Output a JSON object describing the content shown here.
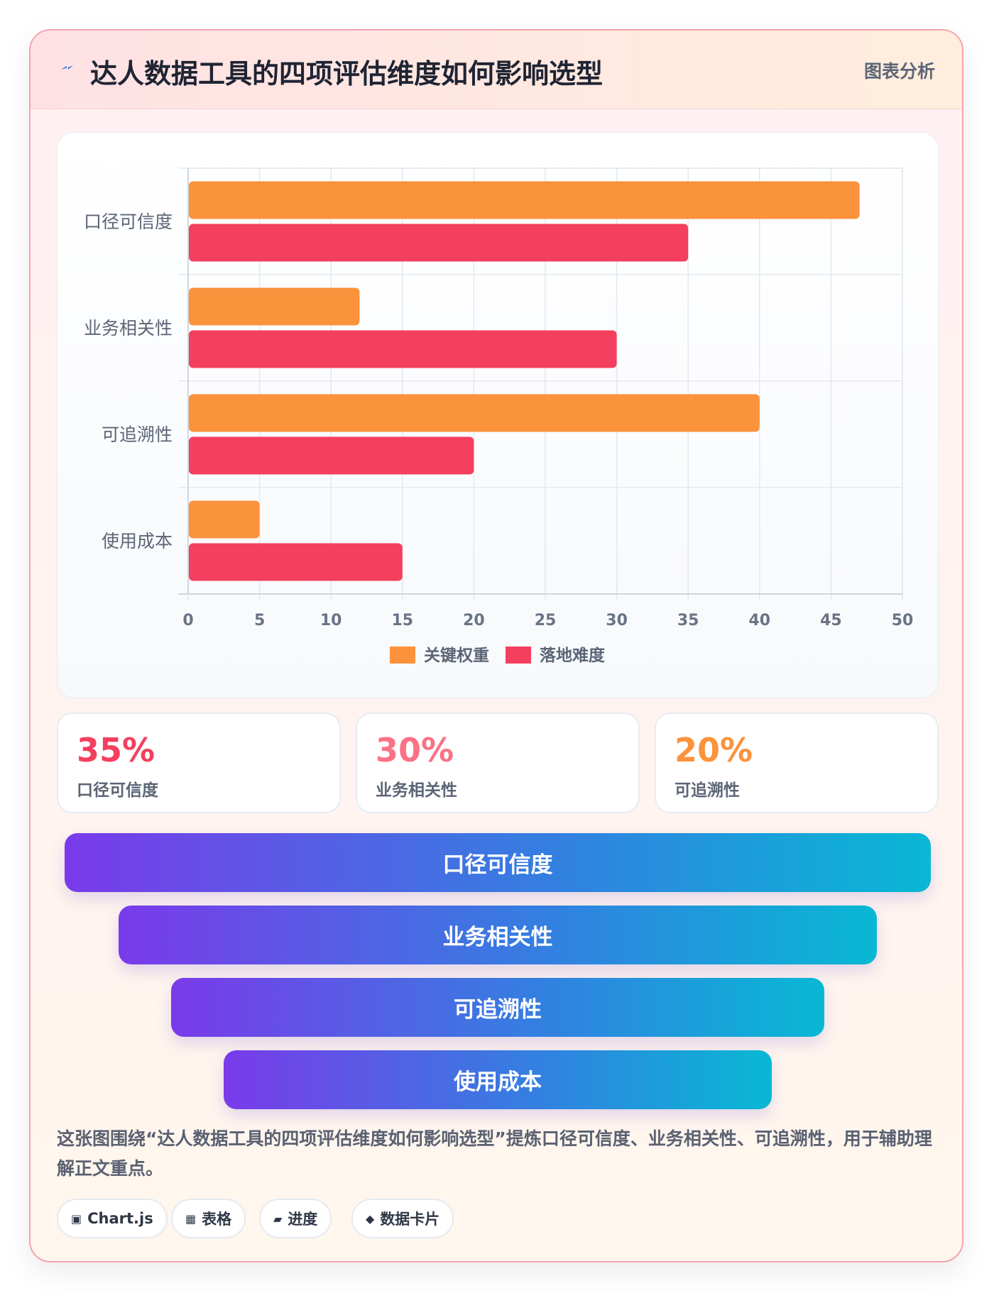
{
  "header": {
    "title": "达人数据工具的四项评估维度如何影响选型",
    "tag": "图表分析"
  },
  "chart_data": {
    "type": "bar",
    "orientation": "horizontal",
    "categories": [
      "口径可信度",
      "业务相关性",
      "可追溯性",
      "使用成本"
    ],
    "series": [
      {
        "name": "关键权重",
        "values": [
          47,
          12,
          40,
          5
        ],
        "color": "#fb923c"
      },
      {
        "name": "落地难度",
        "values": [
          35,
          30,
          20,
          15
        ],
        "color": "#f43f5e"
      }
    ],
    "xlim": [
      0,
      50
    ],
    "x_ticks": [
      "0",
      "5",
      "10",
      "15",
      "20",
      "25",
      "30",
      "35",
      "40",
      "45",
      "50"
    ],
    "grid": true,
    "legend_position": "bottom"
  },
  "stats": [
    {
      "value": "35%",
      "label": "口径可信度",
      "color": "#f43f5e"
    },
    {
      "value": "30%",
      "label": "业务相关性",
      "color": "#fb7185"
    },
    {
      "value": "20%",
      "label": "可追溯性",
      "color": "#fb923c"
    }
  ],
  "funnel": [
    {
      "label": "口径可信度"
    },
    {
      "label": "业务相关性"
    },
    {
      "label": "可追溯性"
    },
    {
      "label": "使用成本"
    }
  ],
  "description": "这张图围绕“达人数据工具的四项评估维度如何影响选型”提炼口径可信度、业务相关性、可追溯性，用于辅助理解正文重点。",
  "chips": [
    {
      "icon": "▣",
      "icon_name": "chart-icon",
      "label": "Chart.js"
    },
    {
      "icon": "▦",
      "icon_name": "table-icon",
      "label": "表格"
    },
    {
      "icon": "▰",
      "icon_name": "progress-icon",
      "label": "进度"
    },
    {
      "icon": "◆",
      "icon_name": "data-card-icon",
      "label": "数据卡片"
    }
  ]
}
